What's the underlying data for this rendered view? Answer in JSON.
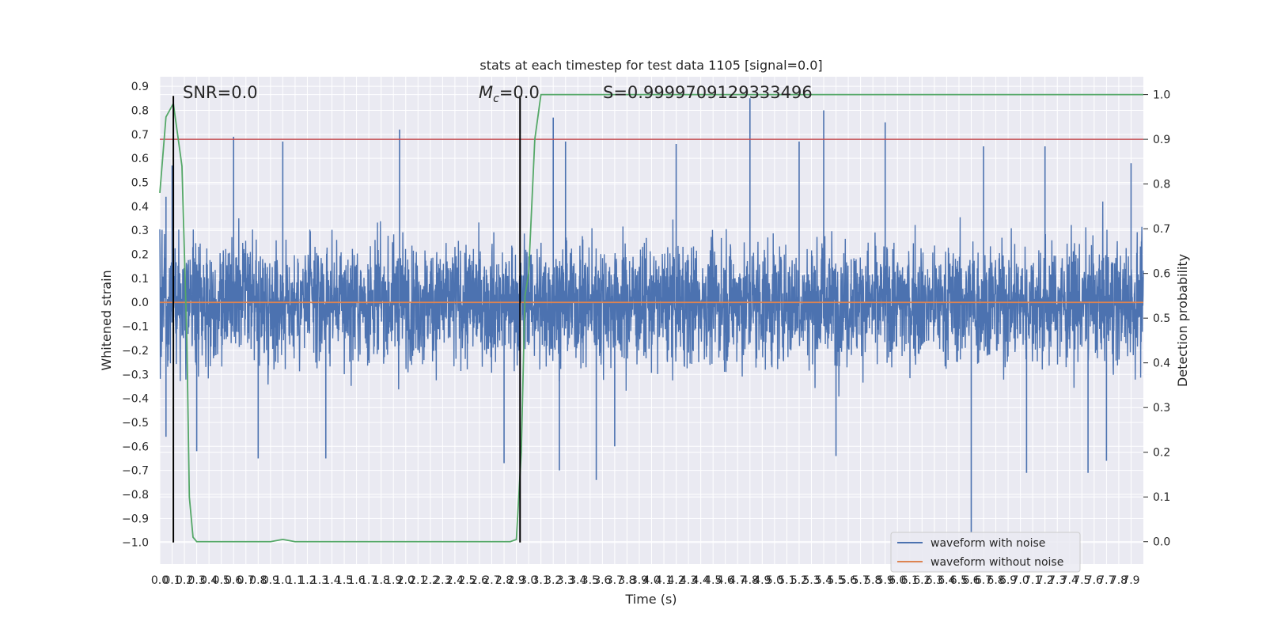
{
  "chart_data": {
    "type": "line",
    "title": "stats at each timestep for test data 1105 [signal=0.0]",
    "xlabel": "Time (s)",
    "ylabel": "Whitened strain",
    "y2label": "Detection probability",
    "xlim": [
      0.0,
      8.0
    ],
    "ylim": [
      -1.09,
      0.94
    ],
    "y2lim": [
      -0.05,
      1.04
    ],
    "x_tick_step": 0.1,
    "x_tick_count": 80,
    "y_ticks": [
      -1.0,
      -0.9,
      -0.8,
      -0.7,
      -0.6,
      -0.5,
      -0.4,
      -0.3,
      -0.2,
      -0.1,
      0.0,
      0.1,
      0.2,
      0.3,
      0.4,
      0.5,
      0.6,
      0.7,
      0.8,
      0.9
    ],
    "y2_ticks": [
      0.0,
      0.1,
      0.2,
      0.3,
      0.4,
      0.5,
      0.6,
      0.7,
      0.8,
      0.9,
      1.0
    ],
    "grid": true,
    "annotations": {
      "snr_text": "SNR=0.0",
      "mc_symbol": "M",
      "mc_subscript": "c",
      "mc_value": "=0.0",
      "s_text": "S=0.9999709129333496"
    },
    "series": [
      {
        "name": "waveform with noise",
        "color": "#4c72b0",
        "kind": "noise",
        "envelope_typical": 0.28,
        "envelope_peaks_up": [
          [
            0.05,
            0.44
          ],
          [
            0.1,
            0.57
          ],
          [
            0.6,
            0.69
          ],
          [
            1.0,
            0.67
          ],
          [
            1.95,
            0.72
          ],
          [
            3.2,
            0.77
          ],
          [
            3.3,
            0.67
          ],
          [
            4.2,
            0.66
          ],
          [
            4.8,
            0.85
          ],
          [
            5.2,
            0.67
          ],
          [
            5.4,
            0.8
          ],
          [
            5.9,
            0.75
          ],
          [
            6.7,
            0.65
          ],
          [
            7.2,
            0.65
          ],
          [
            7.9,
            0.58
          ]
        ],
        "envelope_peaks_down": [
          [
            0.05,
            -0.56
          ],
          [
            0.3,
            -0.62
          ],
          [
            0.8,
            -0.65
          ],
          [
            1.35,
            -0.65
          ],
          [
            2.8,
            -0.67
          ],
          [
            3.25,
            -0.7
          ],
          [
            3.55,
            -0.74
          ],
          [
            3.7,
            -0.6
          ],
          [
            5.5,
            -0.64
          ],
          [
            6.6,
            -0.96
          ],
          [
            7.05,
            -0.71
          ],
          [
            7.55,
            -0.71
          ],
          [
            7.7,
            -0.66
          ]
        ]
      },
      {
        "name": "waveform without noise",
        "color": "#dd8452",
        "x": [
          0.0,
          8.0
        ],
        "y": [
          0.0,
          0.0
        ]
      },
      {
        "name": "",
        "color": "#55a868",
        "axis": "right",
        "x": [
          0.0,
          0.05,
          0.11,
          0.18,
          0.22,
          0.24,
          0.27,
          0.3,
          0.6,
          0.9,
          1.0,
          1.1,
          1.5,
          2.0,
          2.5,
          2.85,
          2.9,
          2.94,
          2.97,
          3.0,
          3.05,
          3.1,
          8.0
        ],
        "y": [
          0.78,
          0.95,
          0.98,
          0.84,
          0.45,
          0.1,
          0.01,
          0.0,
          0.0,
          0.0,
          0.005,
          0.0,
          0.0,
          0.0,
          0.0,
          0.0,
          0.005,
          0.2,
          0.55,
          0.6,
          0.9,
          1.0,
          1.0
        ]
      }
    ],
    "threshold_line": {
      "axis": "right",
      "value": 0.9,
      "color": "#c44e52"
    },
    "vertical_markers": [
      {
        "x": 0.11,
        "ymin": -1.0,
        "ymax": 0.86,
        "color": "#000000"
      },
      {
        "x": 2.93,
        "ymin": -1.0,
        "ymax": 0.86,
        "color": "#000000"
      }
    ],
    "legend": {
      "placement": "lower right",
      "entries": [
        {
          "label": "waveform with noise",
          "color": "#4c72b0"
        },
        {
          "label": "waveform without noise",
          "color": "#dd8452"
        }
      ]
    }
  }
}
